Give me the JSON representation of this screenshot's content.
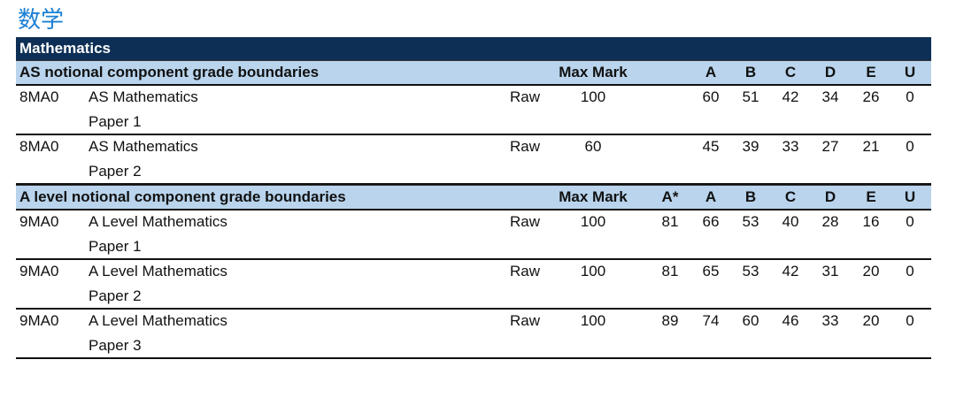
{
  "header": {
    "title": "数学"
  },
  "banner": "Mathematics",
  "sections": [
    {
      "title": "AS notional component grade boundaries",
      "max_header": "Max Mark",
      "grade_headers": [
        "A",
        "B",
        "C",
        "D",
        "E",
        "U"
      ],
      "rows": [
        {
          "code": "8MA0",
          "name": "AS Mathematics",
          "paper": "Paper 1",
          "type": "Raw",
          "max": 100,
          "grades": [
            60,
            51,
            42,
            34,
            26,
            0
          ]
        },
        {
          "code": "8MA0",
          "name": "AS Mathematics",
          "paper": "Paper 2",
          "type": "Raw",
          "max": 60,
          "grades": [
            45,
            39,
            33,
            27,
            21,
            0
          ]
        }
      ]
    },
    {
      "title": "A level notional component grade boundaries",
      "max_header": "Max Mark",
      "grade_headers": [
        "A*",
        "A",
        "B",
        "C",
        "D",
        "E",
        "U"
      ],
      "rows": [
        {
          "code": "9MA0",
          "name": "A Level Mathematics",
          "paper": "Paper 1",
          "type": "Raw",
          "max": 100,
          "grades": [
            81,
            66,
            53,
            40,
            28,
            16,
            0
          ]
        },
        {
          "code": "9MA0",
          "name": "A Level Mathematics",
          "paper": "Paper 2",
          "type": "Raw",
          "max": 100,
          "grades": [
            81,
            65,
            53,
            42,
            31,
            20,
            0
          ]
        },
        {
          "code": "9MA0",
          "name": "A Level Mathematics",
          "paper": "Paper 3",
          "type": "Raw",
          "max": 100,
          "grades": [
            89,
            74,
            60,
            46,
            33,
            20,
            0
          ]
        }
      ]
    }
  ]
}
